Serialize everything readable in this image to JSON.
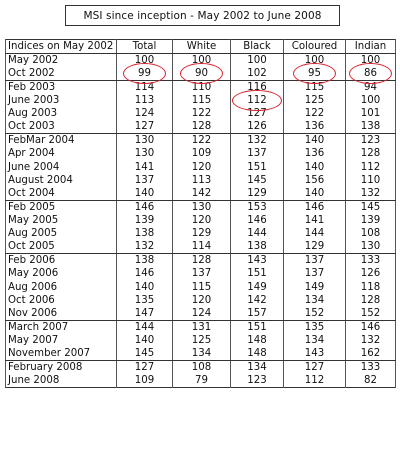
{
  "title": "MSI since inception - May 2002 to June 2008",
  "headers": [
    "Indices on May 2002",
    "Total",
    "White",
    "Black",
    "Coloured",
    "Indian"
  ],
  "groups": [
    [
      {
        "label": "May 2002",
        "values": [
          "100",
          "100",
          "100",
          "100",
          "100"
        ]
      },
      {
        "label": "Oct 2002",
        "values": [
          "99",
          "90",
          "102",
          "95",
          "86"
        ],
        "circled": [
          0,
          1,
          3,
          4
        ]
      }
    ],
    [
      {
        "label": "Feb 2003",
        "values": [
          "114",
          "110",
          "116",
          "115",
          "94"
        ]
      },
      {
        "label": "June 2003",
        "values": [
          "113",
          "115",
          "112",
          "125",
          "100"
        ],
        "circled": [
          2
        ]
      },
      {
        "label": "Aug 2003",
        "values": [
          "124",
          "122",
          "127",
          "122",
          "101"
        ]
      },
      {
        "label": "Oct 2003",
        "values": [
          "127",
          "128",
          "126",
          "136",
          "138"
        ]
      }
    ],
    [
      {
        "label": "FebMar 2004",
        "values": [
          "130",
          "122",
          "132",
          "140",
          "123"
        ]
      },
      {
        "label": "Apr 2004",
        "values": [
          "130",
          "109",
          "137",
          "136",
          "128"
        ]
      },
      {
        "label": "June 2004",
        "values": [
          "141",
          "120",
          "151",
          "140",
          "112"
        ]
      },
      {
        "label": "August 2004",
        "values": [
          "137",
          "113",
          "145",
          "156",
          "110"
        ]
      },
      {
        "label": "Oct 2004",
        "values": [
          "140",
          "142",
          "129",
          "140",
          "132"
        ]
      }
    ],
    [
      {
        "label": "Feb 2005",
        "values": [
          "146",
          "130",
          "153",
          "146",
          "145"
        ]
      },
      {
        "label": "May 2005",
        "values": [
          "139",
          "120",
          "146",
          "141",
          "139"
        ]
      },
      {
        "label": "Aug 2005",
        "values": [
          "138",
          "129",
          "144",
          "144",
          "108"
        ]
      },
      {
        "label": "Oct 2005",
        "values": [
          "132",
          "114",
          "138",
          "129",
          "130"
        ]
      }
    ],
    [
      {
        "label": "Feb 2006",
        "values": [
          "138",
          "128",
          "143",
          "137",
          "133"
        ]
      },
      {
        "label": "May 2006",
        "values": [
          "146",
          "137",
          "151",
          "137",
          "126"
        ]
      },
      {
        "label": "Aug 2006",
        "values": [
          "140",
          "115",
          "149",
          "149",
          "118"
        ]
      },
      {
        "label": "Oct 2006",
        "values": [
          "135",
          "120",
          "142",
          "134",
          "128"
        ]
      },
      {
        "label": "Nov 2006",
        "values": [
          "147",
          "124",
          "157",
          "152",
          "152"
        ]
      }
    ],
    [
      {
        "label": "March 2007",
        "values": [
          "144",
          "131",
          "151",
          "135",
          "146"
        ]
      },
      {
        "label": "May 2007",
        "values": [
          "140",
          "125",
          "148",
          "134",
          "132"
        ]
      },
      {
        "label": "November 2007",
        "values": [
          "145",
          "134",
          "148",
          "143",
          "162"
        ]
      }
    ],
    [
      {
        "label": "February 2008",
        "values": [
          "127",
          "108",
          "134",
          "127",
          "133"
        ]
      },
      {
        "label": "June 2008",
        "values": [
          "109",
          "79",
          "123",
          "112",
          "82"
        ]
      }
    ]
  ]
}
